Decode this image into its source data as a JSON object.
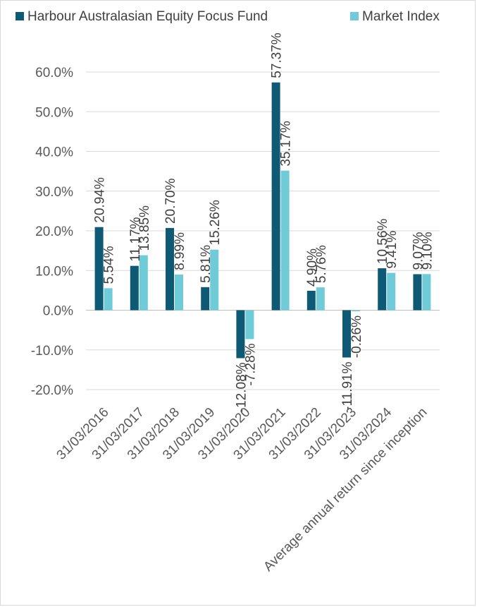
{
  "chart_data": {
    "type": "bar",
    "title": "",
    "xlabel": "",
    "ylabel": "",
    "ylim": [
      -20,
      60
    ],
    "yticks": [
      "60.0%",
      "50.0%",
      "40.0%",
      "30.0%",
      "20.0%",
      "10.0%",
      "0.0%",
      "-10.0%",
      "-20.0%"
    ],
    "grid": true,
    "legend_position": "top",
    "categories": [
      "31/03/2016",
      "31/03/2017",
      "31/03/2018",
      "31/03/2019",
      "31/03/2020",
      "31/03/2021",
      "31/03/2022",
      "31/03/2023",
      "31/03/2024",
      "Average annual return since inception"
    ],
    "series": [
      {
        "name": "Harbour Australasian Equity Focus Fund",
        "color": "#0e5a74",
        "values": [
          20.94,
          11.17,
          20.7,
          5.81,
          -12.08,
          57.37,
          4.9,
          -11.91,
          10.56,
          9.07
        ],
        "labels": [
          "20.94%",
          "11.17%",
          "20.70%",
          "5.81%",
          "-12.08%",
          "57.37%",
          "4.90%",
          "-11.91%",
          "10.56%",
          "9.07%"
        ]
      },
      {
        "name": "Market Index",
        "color": "#6fcbd8",
        "values": [
          5.54,
          13.85,
          8.99,
          15.26,
          -7.28,
          35.17,
          5.76,
          -0.26,
          9.41,
          9.1
        ],
        "labels": [
          "5.54%",
          "13.85%",
          "8.99%",
          "15.26%",
          "-7.28%",
          "35.17%",
          "5.76%",
          "-0.26%",
          "9.41%",
          "9.10%"
        ]
      }
    ]
  }
}
